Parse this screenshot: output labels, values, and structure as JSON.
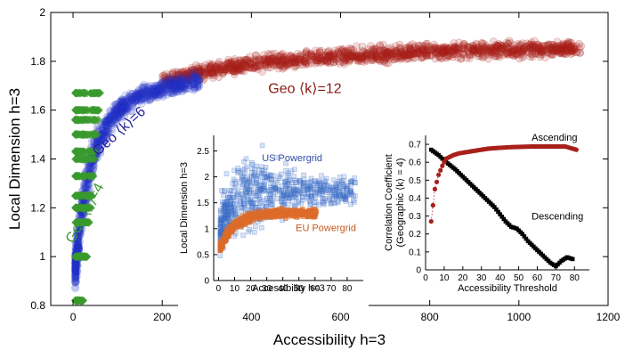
{
  "chart_data": [
    {
      "type": "scatter",
      "title": "",
      "xlabel": "Accessibility h=3",
      "ylabel": "Local Dimension h=3",
      "xlim": [
        -50,
        1200
      ],
      "ylim": [
        0.8,
        2.0
      ],
      "x_ticks": [
        0,
        200,
        400,
        600,
        800,
        1000,
        1200
      ],
      "y_ticks": [
        0.8,
        1,
        1.2,
        1.4,
        1.6,
        1.8,
        2
      ],
      "series": [
        {
          "name": "Geo ⟨k⟩=4",
          "label": "Geo ⟨k⟩=4",
          "color": "#3a9a2e",
          "shape": "diamond",
          "x_range": [
            5,
            60
          ],
          "y_range": [
            0.8,
            1.72
          ],
          "discrete_y": [
            0.82,
            1.0,
            1.14,
            1.2,
            1.25,
            1.33,
            1.4,
            1.43,
            1.5,
            1.56,
            1.6,
            1.67
          ]
        },
        {
          "name": "Geo ⟨k⟩=6",
          "label": "Geo ⟨k⟩=6",
          "color": "#2233c8",
          "shape": "circle",
          "trend": [
            [
              5,
              0.95
            ],
            [
              20,
              1.2
            ],
            [
              50,
              1.45
            ],
            [
              100,
              1.6
            ],
            [
              150,
              1.66
            ],
            [
              200,
              1.69
            ],
            [
              280,
              1.72
            ]
          ]
        },
        {
          "name": "Geo ⟨k⟩=12",
          "label": "Geo ⟨k⟩=12",
          "color": "#a8201a",
          "shape": "circle",
          "trend": [
            [
              200,
              1.72
            ],
            [
              300,
              1.76
            ],
            [
              400,
              1.79
            ],
            [
              600,
              1.82
            ],
            [
              800,
              1.84
            ],
            [
              1000,
              1.85
            ],
            [
              1140,
              1.85
            ]
          ]
        }
      ]
    },
    {
      "type": "scatter",
      "title": "",
      "xlabel": "Accessibility h=3",
      "ylabel": "Local Dimension h=3",
      "xlim": [
        -3,
        90
      ],
      "ylim": [
        0,
        2.8
      ],
      "x_ticks": [
        0,
        10,
        20,
        30,
        40,
        50,
        60,
        70,
        80
      ],
      "y_ticks": [
        0,
        0.5,
        1,
        1.5,
        2,
        2.5
      ],
      "series": [
        {
          "name": "US Powergrid",
          "label": "US Powergrid",
          "color": "#3b6dc7",
          "shape": "square",
          "x_range": [
            1,
            85
          ],
          "y_range": [
            0.3,
            2.65
          ]
        },
        {
          "name": "EU Powergrid",
          "label": "EU Powergrid",
          "color": "#dd6b2a",
          "shape": "square",
          "x_range": [
            1,
            62
          ],
          "y_range": [
            0.5,
            1.6
          ]
        }
      ]
    },
    {
      "type": "line",
      "title": "",
      "xlabel": "Accessibility Threshold",
      "ylabel": "Correlation Coefficient",
      "ylabel2": "(Geographic ⟨k⟩ = 4)",
      "xlim": [
        0,
        88
      ],
      "ylim": [
        0,
        0.75
      ],
      "x_ticks": [
        0,
        10,
        20,
        30,
        40,
        50,
        60,
        70,
        80
      ],
      "y_ticks": [
        0,
        0.1,
        0.2,
        0.3,
        0.4,
        0.5,
        0.6,
        0.7
      ],
      "series": [
        {
          "name": "Ascending",
          "label": "Ascending",
          "color": "#a8201a",
          "shape": "circle",
          "x": [
            3,
            5,
            7,
            9,
            11,
            13,
            15,
            18,
            21,
            24,
            27,
            30,
            33,
            36,
            39,
            42,
            45,
            48,
            51,
            54,
            57,
            60,
            63,
            66,
            69,
            72,
            75,
            81
          ],
          "y": [
            0.27,
            0.45,
            0.53,
            0.58,
            0.62,
            0.63,
            0.64,
            0.65,
            0.655,
            0.66,
            0.665,
            0.67,
            0.675,
            0.678,
            0.68,
            0.682,
            0.684,
            0.685,
            0.686,
            0.687,
            0.688,
            0.688,
            0.688,
            0.688,
            0.688,
            0.688,
            0.688,
            0.67
          ]
        },
        {
          "name": "Descending",
          "label": "Descending",
          "color": "#000000",
          "shape": "square",
          "x": [
            3,
            5,
            7,
            10,
            13,
            16,
            19,
            22,
            25,
            28,
            31,
            34,
            37,
            40,
            43,
            46,
            49,
            52,
            55,
            58,
            61,
            64,
            67,
            70,
            73,
            76,
            79
          ],
          "y": [
            0.67,
            0.655,
            0.64,
            0.61,
            0.585,
            0.56,
            0.53,
            0.5,
            0.47,
            0.44,
            0.41,
            0.38,
            0.35,
            0.31,
            0.27,
            0.24,
            0.23,
            0.2,
            0.16,
            0.13,
            0.1,
            0.07,
            0.04,
            0.02,
            0.05,
            0.07,
            0.06
          ]
        }
      ]
    }
  ]
}
